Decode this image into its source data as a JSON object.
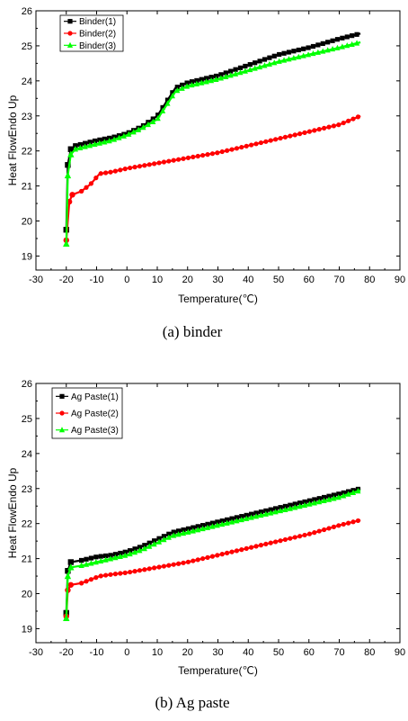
{
  "chart_data": [
    {
      "type": "line",
      "caption": "(a)  binder",
      "xlabel": "Temperature(℃)",
      "ylabel": "Heat FlowEndo Up",
      "xlim": [
        -30,
        90
      ],
      "ylim": [
        18.6,
        26
      ],
      "xticks": [
        "-30",
        "-20",
        "-10",
        "0",
        "10",
        "20",
        "30",
        "40",
        "50",
        "60",
        "70",
        "80",
        "90"
      ],
      "yticks": [
        "19",
        "20",
        "21",
        "22",
        "23",
        "24",
        "25",
        "26"
      ],
      "legend_position": "top-left",
      "series": [
        {
          "name": "Binder(1)",
          "color": "#000000",
          "marker": "square",
          "points": [
            [
              -20,
              19.75
            ],
            [
              -19.5,
              21.6
            ],
            [
              -18.5,
              22.05
            ],
            [
              -17,
              22.15
            ],
            [
              -10,
              22.3
            ],
            [
              -5,
              22.38
            ],
            [
              0,
              22.5
            ],
            [
              5,
              22.7
            ],
            [
              10,
              23.0
            ],
            [
              13,
              23.4
            ],
            [
              16,
              23.8
            ],
            [
              20,
              23.95
            ],
            [
              30,
              24.15
            ],
            [
              40,
              24.45
            ],
            [
              50,
              24.75
            ],
            [
              60,
              24.95
            ],
            [
              70,
              25.2
            ],
            [
              77,
              25.35
            ]
          ]
        },
        {
          "name": "Binder(2)",
          "color": "#ff0000",
          "marker": "circle",
          "points": [
            [
              -20,
              19.45
            ],
            [
              -19,
              20.55
            ],
            [
              -18,
              20.75
            ],
            [
              -15,
              20.85
            ],
            [
              -12,
              21.05
            ],
            [
              -9,
              21.35
            ],
            [
              -5,
              21.4
            ],
            [
              0,
              21.5
            ],
            [
              10,
              21.65
            ],
            [
              20,
              21.8
            ],
            [
              30,
              21.95
            ],
            [
              40,
              22.15
            ],
            [
              50,
              22.35
            ],
            [
              60,
              22.55
            ],
            [
              70,
              22.75
            ],
            [
              77,
              23.0
            ]
          ]
        },
        {
          "name": "Binder(3)",
          "color": "#00ff00",
          "marker": "triangle",
          "points": [
            [
              -20,
              19.35
            ],
            [
              -19.5,
              21.3
            ],
            [
              -18.5,
              21.9
            ],
            [
              -17,
              22.05
            ],
            [
              -10,
              22.2
            ],
            [
              -5,
              22.3
            ],
            [
              0,
              22.45
            ],
            [
              5,
              22.65
            ],
            [
              10,
              22.9
            ],
            [
              13,
              23.3
            ],
            [
              16,
              23.7
            ],
            [
              20,
              23.85
            ],
            [
              30,
              24.05
            ],
            [
              40,
              24.3
            ],
            [
              50,
              24.55
            ],
            [
              60,
              24.75
            ],
            [
              70,
              24.95
            ],
            [
              77,
              25.1
            ]
          ]
        }
      ]
    },
    {
      "type": "line",
      "caption": "(b)  Ag  paste",
      "xlabel": "Temperature(℃)",
      "ylabel": "Heat FlowEndo Up",
      "xlim": [
        -30,
        90
      ],
      "ylim": [
        18.6,
        26
      ],
      "xticks": [
        "-30",
        "-20",
        "-10",
        "0",
        "10",
        "20",
        "30",
        "40",
        "50",
        "60",
        "70",
        "80",
        "90"
      ],
      "yticks": [
        "19",
        "20",
        "21",
        "22",
        "23",
        "24",
        "25",
        "26"
      ],
      "legend_position": "top-left",
      "series": [
        {
          "name": "Ag Paste(1)",
          "color": "#000000",
          "marker": "square",
          "points": [
            [
              -20,
              19.45
            ],
            [
              -19.5,
              20.65
            ],
            [
              -18.5,
              20.9
            ],
            [
              -15,
              20.95
            ],
            [
              -10,
              21.05
            ],
            [
              -5,
              21.1
            ],
            [
              0,
              21.2
            ],
            [
              5,
              21.35
            ],
            [
              10,
              21.55
            ],
            [
              15,
              21.75
            ],
            [
              20,
              21.85
            ],
            [
              30,
              22.05
            ],
            [
              40,
              22.25
            ],
            [
              50,
              22.45
            ],
            [
              60,
              22.65
            ],
            [
              70,
              22.85
            ],
            [
              77,
              23.0
            ]
          ]
        },
        {
          "name": "Ag Paste(2)",
          "color": "#ff0000",
          "marker": "circle",
          "points": [
            [
              -20,
              19.35
            ],
            [
              -19.5,
              20.1
            ],
            [
              -18.5,
              20.25
            ],
            [
              -15,
              20.3
            ],
            [
              -12,
              20.4
            ],
            [
              -9,
              20.5
            ],
            [
              -5,
              20.55
            ],
            [
              0,
              20.6
            ],
            [
              10,
              20.75
            ],
            [
              20,
              20.9
            ],
            [
              30,
              21.1
            ],
            [
              40,
              21.3
            ],
            [
              50,
              21.5
            ],
            [
              60,
              21.7
            ],
            [
              70,
              21.95
            ],
            [
              77,
              22.1
            ]
          ]
        },
        {
          "name": "Ag Paste(3)",
          "color": "#00ff00",
          "marker": "triangle",
          "points": [
            [
              -20,
              19.3
            ],
            [
              -19.5,
              20.5
            ],
            [
              -18.5,
              20.75
            ],
            [
              -15,
              20.8
            ],
            [
              -10,
              20.9
            ],
            [
              -5,
              21.0
            ],
            [
              0,
              21.1
            ],
            [
              5,
              21.25
            ],
            [
              10,
              21.45
            ],
            [
              15,
              21.65
            ],
            [
              20,
              21.75
            ],
            [
              30,
              21.95
            ],
            [
              40,
              22.15
            ],
            [
              50,
              22.35
            ],
            [
              60,
              22.55
            ],
            [
              70,
              22.75
            ],
            [
              77,
              22.95
            ]
          ]
        }
      ]
    }
  ]
}
